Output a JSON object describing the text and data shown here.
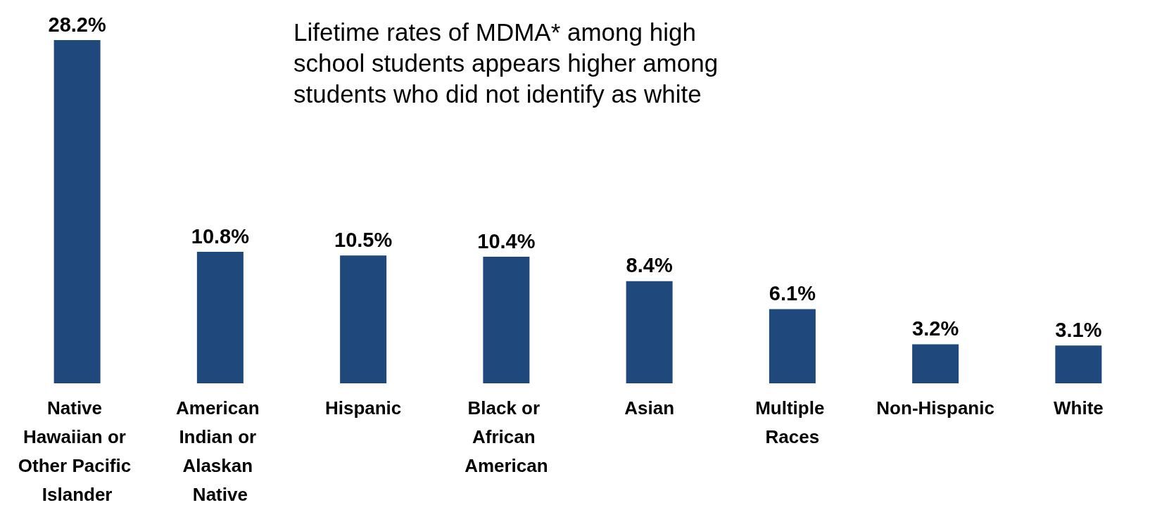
{
  "chart_data": {
    "type": "bar",
    "title": "Lifetime rates of MDMA* among high school students appears higher among students who did not identify as white",
    "categories": [
      "Native Hawaiian or Other Pacific Islander",
      "American Indian or Alaskan Native",
      "Hispanic",
      "Black or African American",
      "Asian",
      "Multiple Races",
      "Non-Hispanic",
      "White"
    ],
    "values": [
      28.2,
      10.8,
      10.5,
      10.4,
      8.4,
      6.1,
      3.2,
      3.1
    ],
    "value_labels": [
      "28.2%",
      "10.8%",
      "10.5%",
      "10.4%",
      "8.4%",
      "6.1%",
      "3.2%",
      "3.1%"
    ],
    "color": "#1f497d"
  }
}
